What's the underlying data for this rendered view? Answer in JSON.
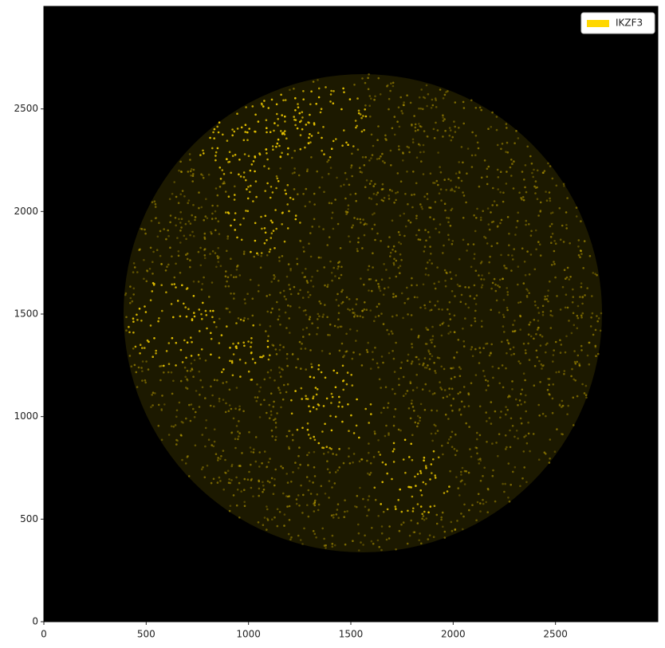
{
  "chart_data": {
    "type": "image",
    "xlim": [
      0,
      3000
    ],
    "ylim": [
      0,
      3000
    ],
    "xticks": [
      0,
      500,
      1000,
      1500,
      2000,
      2500
    ],
    "yticks": [
      0,
      500,
      1000,
      1500,
      2000,
      2500
    ],
    "legend": {
      "corner": "upper right",
      "entries": [
        {
          "label": "IKZF3",
          "color": "#ffd700"
        }
      ]
    }
  }
}
